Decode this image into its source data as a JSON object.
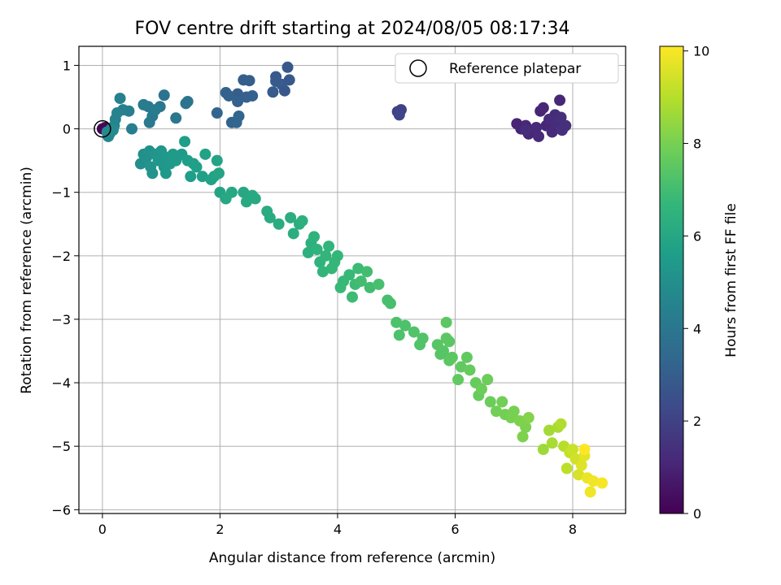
{
  "chart_data": {
    "type": "scatter",
    "title": "FOV centre drift starting at 2024/08/05 08:17:34",
    "xlabel": "Angular distance from reference (arcmin)",
    "ylabel": "Rotation from reference (arcmin)",
    "xlim": [
      -0.4,
      8.9
    ],
    "ylim": [
      -6.06,
      1.3
    ],
    "xticks": [
      0,
      2,
      4,
      6,
      8
    ],
    "yticks": [
      1,
      0,
      -1,
      -2,
      -3,
      -4,
      -5,
      -6
    ],
    "grid": true,
    "legend": {
      "placement": "top-right",
      "entries": [
        "Reference platepar"
      ]
    },
    "reference_point": {
      "x": 0,
      "y": 0
    },
    "colorbar": {
      "label": "Hours from first FF file",
      "range": [
        0,
        10.1
      ],
      "ticks": [
        0,
        2,
        4,
        6,
        8,
        10
      ],
      "colormap": "viridis"
    },
    "series": [
      {
        "marker_color_by": "hours",
        "points": [
          [
            0.0,
            0.0,
            0.1
          ],
          [
            0.05,
            0.02,
            0.2
          ],
          [
            7.05,
            0.08,
            1.0
          ],
          [
            7.12,
            0.0,
            1.0
          ],
          [
            7.2,
            0.05,
            1.1
          ],
          [
            7.25,
            -0.08,
            1.1
          ],
          [
            7.38,
            0.02,
            1.2
          ],
          [
            7.42,
            -0.12,
            1.2
          ],
          [
            7.45,
            0.28,
            1.0
          ],
          [
            7.5,
            0.33,
            1.1
          ],
          [
            7.55,
            0.05,
            1.1
          ],
          [
            7.6,
            0.15,
            1.2
          ],
          [
            7.65,
            -0.05,
            1.2
          ],
          [
            7.7,
            0.22,
            1.3
          ],
          [
            7.72,
            0.1,
            1.3
          ],
          [
            7.78,
            0.45,
            1.1
          ],
          [
            7.8,
            0.18,
            1.4
          ],
          [
            7.82,
            -0.02,
            1.4
          ],
          [
            7.88,
            0.05,
            1.4
          ],
          [
            7.2,
            -0.02,
            1.3
          ],
          [
            5.02,
            0.27,
            2.0
          ],
          [
            5.08,
            0.3,
            2.0
          ],
          [
            5.05,
            0.22,
            2.1
          ],
          [
            2.3,
            0.55,
            3.0
          ],
          [
            2.4,
            0.77,
            3.0
          ],
          [
            2.5,
            0.76,
            3.0
          ],
          [
            2.55,
            0.52,
            3.1
          ],
          [
            2.3,
            0.43,
            3.1
          ],
          [
            2.45,
            0.5,
            3.1
          ],
          [
            2.2,
            0.1,
            3.2
          ],
          [
            2.15,
            0.52,
            3.2
          ],
          [
            2.1,
            0.57,
            3.2
          ],
          [
            2.32,
            0.2,
            3.3
          ],
          [
            2.28,
            0.1,
            3.3
          ],
          [
            1.95,
            0.25,
            3.3
          ],
          [
            2.9,
            0.58,
            2.9
          ],
          [
            2.95,
            0.75,
            2.9
          ],
          [
            3.05,
            0.7,
            2.9
          ],
          [
            3.1,
            0.6,
            2.8
          ],
          [
            3.15,
            0.97,
            2.8
          ],
          [
            3.18,
            0.77,
            2.8
          ],
          [
            2.95,
            0.82,
            2.9
          ],
          [
            1.05,
            0.53,
            3.9
          ],
          [
            1.42,
            0.4,
            3.9
          ],
          [
            1.45,
            0.43,
            3.9
          ],
          [
            1.25,
            0.17,
            4.0
          ],
          [
            0.98,
            0.35,
            4.0
          ],
          [
            0.85,
            0.2,
            4.1
          ],
          [
            0.8,
            0.1,
            4.1
          ],
          [
            0.78,
            0.35,
            4.1
          ],
          [
            0.7,
            0.38,
            4.2
          ],
          [
            0.9,
            0.3,
            4.2
          ],
          [
            0.5,
            0.0,
            4.3
          ],
          [
            0.45,
            0.28,
            4.3
          ],
          [
            0.35,
            0.3,
            4.4
          ],
          [
            0.3,
            0.48,
            4.4
          ],
          [
            0.25,
            0.25,
            4.5
          ],
          [
            0.22,
            0.15,
            4.5
          ],
          [
            0.2,
            0.05,
            4.6
          ],
          [
            0.15,
            0.0,
            4.6
          ],
          [
            0.12,
            -0.08,
            4.7
          ],
          [
            0.1,
            -0.12,
            4.7
          ],
          [
            0.18,
            -0.02,
            4.8
          ],
          [
            0.08,
            -0.05,
            4.8
          ],
          [
            0.7,
            -0.4,
            5.0
          ],
          [
            0.65,
            -0.55,
            5.0
          ],
          [
            0.75,
            -0.45,
            5.1
          ],
          [
            0.8,
            -0.35,
            5.1
          ],
          [
            0.82,
            -0.6,
            5.2
          ],
          [
            0.85,
            -0.7,
            5.2
          ],
          [
            0.9,
            -0.4,
            5.2
          ],
          [
            0.95,
            -0.5,
            5.3
          ],
          [
            1.0,
            -0.35,
            5.3
          ],
          [
            1.05,
            -0.6,
            5.3
          ],
          [
            1.08,
            -0.7,
            5.4
          ],
          [
            1.1,
            -0.45,
            5.4
          ],
          [
            1.15,
            -0.55,
            5.4
          ],
          [
            1.2,
            -0.4,
            5.5
          ],
          [
            1.25,
            -0.5,
            5.5
          ],
          [
            1.35,
            -0.4,
            5.5
          ],
          [
            1.4,
            -0.2,
            5.6
          ],
          [
            1.45,
            -0.5,
            5.6
          ],
          [
            1.5,
            -0.75,
            5.6
          ],
          [
            1.55,
            -0.55,
            5.7
          ],
          [
            1.6,
            -0.6,
            5.7
          ],
          [
            1.7,
            -0.75,
            5.7
          ],
          [
            1.75,
            -0.4,
            5.8
          ],
          [
            1.85,
            -0.8,
            5.8
          ],
          [
            1.9,
            -0.75,
            5.8
          ],
          [
            1.95,
            -0.5,
            5.9
          ],
          [
            1.98,
            -0.7,
            5.9
          ],
          [
            2.0,
            -1.0,
            5.9
          ],
          [
            2.1,
            -1.1,
            6.0
          ],
          [
            2.2,
            -1.0,
            6.0
          ],
          [
            2.4,
            -1.0,
            6.0
          ],
          [
            2.45,
            -1.15,
            6.1
          ],
          [
            2.55,
            -1.05,
            6.1
          ],
          [
            2.6,
            -1.1,
            6.1
          ],
          [
            2.8,
            -1.3,
            6.2
          ],
          [
            2.85,
            -1.4,
            6.2
          ],
          [
            3.0,
            -1.5,
            6.2
          ],
          [
            3.2,
            -1.4,
            6.3
          ],
          [
            3.25,
            -1.65,
            6.3
          ],
          [
            3.35,
            -1.5,
            6.3
          ],
          [
            3.4,
            -1.45,
            6.4
          ],
          [
            3.5,
            -1.95,
            6.4
          ],
          [
            3.55,
            -1.8,
            6.4
          ],
          [
            3.6,
            -1.7,
            6.5
          ],
          [
            3.65,
            -1.9,
            6.5
          ],
          [
            3.7,
            -2.1,
            6.5
          ],
          [
            3.75,
            -2.25,
            6.6
          ],
          [
            3.8,
            -2.0,
            6.6
          ],
          [
            3.85,
            -1.85,
            6.6
          ],
          [
            3.9,
            -2.2,
            6.7
          ],
          [
            3.95,
            -2.1,
            6.7
          ],
          [
            4.0,
            -2.0,
            6.7
          ],
          [
            4.05,
            -2.5,
            6.8
          ],
          [
            4.1,
            -2.4,
            6.8
          ],
          [
            4.2,
            -2.3,
            6.8
          ],
          [
            4.25,
            -2.65,
            6.9
          ],
          [
            4.3,
            -2.45,
            6.9
          ],
          [
            4.35,
            -2.2,
            6.9
          ],
          [
            4.4,
            -2.4,
            7.0
          ],
          [
            4.5,
            -2.25,
            7.0
          ],
          [
            4.55,
            -2.5,
            7.0
          ],
          [
            4.7,
            -2.45,
            7.1
          ],
          [
            4.85,
            -2.7,
            7.1
          ],
          [
            4.9,
            -2.75,
            7.1
          ],
          [
            5.0,
            -3.05,
            7.2
          ],
          [
            5.05,
            -3.25,
            7.2
          ],
          [
            5.15,
            -3.1,
            7.2
          ],
          [
            5.3,
            -3.2,
            7.3
          ],
          [
            5.4,
            -3.4,
            7.3
          ],
          [
            5.45,
            -3.3,
            7.3
          ],
          [
            5.7,
            -3.4,
            7.4
          ],
          [
            5.75,
            -3.55,
            7.4
          ],
          [
            5.8,
            -3.5,
            7.4
          ],
          [
            5.85,
            -3.3,
            7.5
          ],
          [
            5.9,
            -3.65,
            7.5
          ],
          [
            5.95,
            -3.6,
            7.5
          ],
          [
            6.05,
            -3.95,
            7.6
          ],
          [
            6.1,
            -3.75,
            7.6
          ],
          [
            6.2,
            -3.6,
            7.6
          ],
          [
            6.25,
            -3.8,
            7.7
          ],
          [
            6.35,
            -4.0,
            7.7
          ],
          [
            6.4,
            -4.2,
            7.7
          ],
          [
            6.45,
            -4.1,
            7.8
          ],
          [
            6.55,
            -3.95,
            7.8
          ],
          [
            6.6,
            -4.3,
            7.8
          ],
          [
            6.7,
            -4.45,
            7.9
          ],
          [
            6.8,
            -4.3,
            7.9
          ],
          [
            6.85,
            -4.5,
            7.9
          ],
          [
            6.95,
            -4.55,
            8.0
          ],
          [
            7.0,
            -4.45,
            8.0
          ],
          [
            7.1,
            -4.6,
            8.1
          ],
          [
            7.15,
            -4.85,
            8.1
          ],
          [
            7.2,
            -4.7,
            8.1
          ],
          [
            7.25,
            -4.55,
            8.2
          ],
          [
            5.85,
            -3.05,
            7.5
          ],
          [
            5.9,
            -3.35,
            7.5
          ],
          [
            7.5,
            -5.05,
            8.6
          ],
          [
            7.6,
            -4.75,
            8.7
          ],
          [
            7.65,
            -4.95,
            8.8
          ],
          [
            7.75,
            -4.7,
            8.8
          ],
          [
            7.8,
            -4.65,
            8.9
          ],
          [
            7.85,
            -5.0,
            9.0
          ],
          [
            7.9,
            -5.35,
            9.1
          ],
          [
            7.95,
            -5.1,
            9.2
          ],
          [
            8.0,
            -5.05,
            9.3
          ],
          [
            8.05,
            -5.2,
            9.4
          ],
          [
            8.1,
            -5.45,
            9.5
          ],
          [
            8.15,
            -5.3,
            9.6
          ],
          [
            8.2,
            -5.15,
            9.7
          ],
          [
            8.25,
            -5.5,
            9.8
          ],
          [
            8.3,
            -5.72,
            9.9
          ],
          [
            8.35,
            -5.55,
            9.9
          ],
          [
            8.5,
            -5.58,
            10.0
          ],
          [
            8.2,
            -5.05,
            10.1
          ]
        ]
      }
    ]
  }
}
